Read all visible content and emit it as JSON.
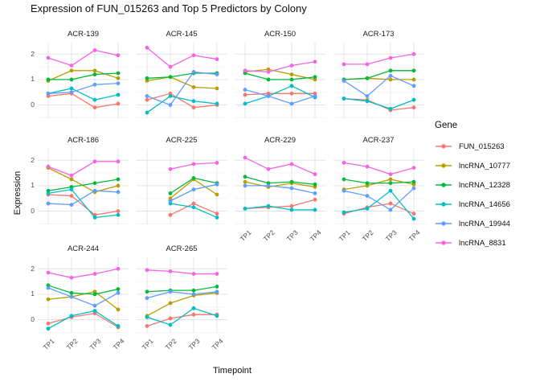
{
  "chart_data": {
    "type": "line",
    "title": "Expression of FUN_015263 and Top 5 Predictors by Colony",
    "xlabel": "Timepoint",
    "ylabel": "Expression",
    "x": [
      "TP1",
      "TP2",
      "TP3",
      "TP4"
    ],
    "yticks": [
      0,
      1,
      2
    ],
    "ylim": [
      -0.52,
      2.45
    ],
    "grid": "on",
    "legend": {
      "title": "Gene",
      "position": "right"
    },
    "series_order": [
      "FUN_015263",
      "lncRNA_10777",
      "lncRNA_12328",
      "lncRNA_14656",
      "lncRNA_19944",
      "lncRNA_8831"
    ],
    "colors": {
      "FUN_015263": "#F8766D",
      "lncRNA_10777": "#B79F00",
      "lncRNA_12328": "#00BA38",
      "lncRNA_14656": "#00BFC4",
      "lncRNA_19944": "#619CFF",
      "lncRNA_8831": "#F564E3"
    },
    "facets": [
      {
        "name": "ACR-139",
        "series": {
          "FUN_015263": [
            0.35,
            0.45,
            -0.1,
            0.05
          ],
          "lncRNA_10777": [
            0.95,
            1.35,
            1.35,
            1.05
          ],
          "lncRNA_12328": [
            1.0,
            1.0,
            1.2,
            1.25
          ],
          "lncRNA_14656": [
            0.45,
            0.65,
            0.2,
            0.4
          ],
          "lncRNA_19944": [
            0.45,
            0.5,
            0.8,
            0.85
          ],
          "lncRNA_8831": [
            1.85,
            1.55,
            2.15,
            1.95
          ]
        }
      },
      {
        "name": "ACR-145",
        "series": {
          "FUN_015263": [
            0.2,
            0.45,
            -0.1,
            0.0
          ],
          "lncRNA_10777": [
            0.95,
            1.1,
            0.7,
            0.65
          ],
          "lncRNA_12328": [
            1.05,
            1.1,
            1.25,
            1.25
          ],
          "lncRNA_14656": [
            -0.3,
            0.35,
            0.15,
            0.05
          ],
          "lncRNA_19944": [
            0.35,
            0.0,
            1.3,
            1.2
          ],
          "lncRNA_8831": [
            2.25,
            1.5,
            1.95,
            1.8
          ]
        }
      },
      {
        "name": "ACR-150",
        "series": {
          "FUN_015263": [
            0.4,
            0.45,
            0.45,
            0.45
          ],
          "lncRNA_10777": [
            1.3,
            1.4,
            1.2,
            1.0
          ],
          "lncRNA_12328": [
            1.25,
            1.0,
            1.0,
            1.1
          ],
          "lncRNA_14656": [
            0.05,
            0.35,
            0.75,
            0.3
          ],
          "lncRNA_19944": [
            0.6,
            0.35,
            0.05,
            0.35
          ],
          "lncRNA_8831": [
            1.35,
            1.3,
            1.55,
            1.7
          ]
        }
      },
      {
        "name": "ACR-173",
        "series": {
          "FUN_015263": [
            0.25,
            0.2,
            -0.2,
            -0.1
          ],
          "lncRNA_10777": [
            1.0,
            1.05,
            1.0,
            1.0
          ],
          "lncRNA_12328": [
            1.0,
            1.05,
            1.35,
            1.35
          ],
          "lncRNA_14656": [
            0.25,
            0.15,
            -0.15,
            0.2
          ],
          "lncRNA_19944": [
            0.95,
            0.35,
            1.15,
            0.75
          ],
          "lncRNA_8831": [
            1.6,
            1.6,
            1.85,
            2.0
          ]
        }
      },
      {
        "name": "ACR-186",
        "series": {
          "FUN_015263": [
            0.65,
            0.6,
            -0.15,
            0.0
          ],
          "lncRNA_10777": [
            1.7,
            1.25,
            0.75,
            1.0
          ],
          "lncRNA_12328": [
            0.8,
            0.95,
            1.1,
            1.25
          ],
          "lncRNA_14656": [
            0.7,
            0.85,
            -0.25,
            -0.15
          ],
          "lncRNA_19944": [
            0.3,
            0.25,
            0.8,
            0.75
          ],
          "lncRNA_8831": [
            1.75,
            1.4,
            1.95,
            1.95
          ]
        }
      },
      {
        "name": "ACR-225",
        "series": {
          "FUN_015263": [
            null,
            -0.15,
            0.3,
            -0.1
          ],
          "lncRNA_10777": [
            null,
            0.5,
            1.25,
            0.65
          ],
          "lncRNA_12328": [
            null,
            0.7,
            1.3,
            1.1
          ],
          "lncRNA_14656": [
            null,
            0.3,
            0.15,
            -0.25
          ],
          "lncRNA_19944": [
            null,
            0.4,
            0.85,
            1.05
          ],
          "lncRNA_8831": [
            null,
            1.65,
            1.85,
            1.9
          ]
        }
      },
      {
        "name": "ACR-229",
        "series": {
          "FUN_015263": [
            0.1,
            0.15,
            0.2,
            0.45
          ],
          "lncRNA_10777": [
            1.15,
            0.95,
            1.1,
            0.95
          ],
          "lncRNA_12328": [
            1.35,
            1.1,
            1.15,
            1.05
          ],
          "lncRNA_14656": [
            0.1,
            0.2,
            0.05,
            0.05
          ],
          "lncRNA_19944": [
            1.0,
            1.0,
            0.9,
            0.7
          ],
          "lncRNA_8831": [
            2.1,
            1.65,
            1.85,
            1.45
          ]
        }
      },
      {
        "name": "ACR-237",
        "series": {
          "FUN_015263": [
            -0.1,
            0.15,
            0.3,
            -0.1
          ],
          "lncRNA_10777": [
            0.85,
            1.0,
            1.25,
            1.05
          ],
          "lncRNA_12328": [
            1.25,
            1.1,
            1.1,
            1.15
          ],
          "lncRNA_14656": [
            -0.05,
            0.1,
            0.8,
            -0.3
          ],
          "lncRNA_19944": [
            0.8,
            0.6,
            0.05,
            0.9
          ],
          "lncRNA_8831": [
            1.9,
            1.75,
            1.45,
            1.7
          ]
        }
      },
      {
        "name": "ACR-244",
        "series": {
          "FUN_015263": [
            -0.15,
            0.1,
            0.25,
            -0.3
          ],
          "lncRNA_10777": [
            0.8,
            0.9,
            1.1,
            0.4
          ],
          "lncRNA_12328": [
            1.35,
            1.05,
            1.0,
            1.2
          ],
          "lncRNA_14656": [
            -0.35,
            0.15,
            0.35,
            -0.25
          ],
          "lncRNA_19944": [
            1.25,
            0.9,
            0.55,
            1.05
          ],
          "lncRNA_8831": [
            1.85,
            1.65,
            1.8,
            2.0
          ]
        }
      },
      {
        "name": "ACR-265",
        "series": {
          "FUN_015263": [
            -0.25,
            0.05,
            0.2,
            0.2
          ],
          "lncRNA_10777": [
            0.15,
            0.65,
            0.95,
            1.05
          ],
          "lncRNA_12328": [
            1.1,
            1.15,
            1.15,
            1.3
          ],
          "lncRNA_14656": [
            0.1,
            -0.2,
            0.45,
            0.15
          ],
          "lncRNA_19944": [
            0.85,
            1.1,
            1.0,
            1.1
          ],
          "lncRNA_8831": [
            1.95,
            1.9,
            1.8,
            1.8
          ]
        }
      }
    ],
    "style": {
      "grid_major_color": "#e4e4e4",
      "grid_minor_color": "#f0f0f0",
      "background": "#ffffff"
    }
  }
}
